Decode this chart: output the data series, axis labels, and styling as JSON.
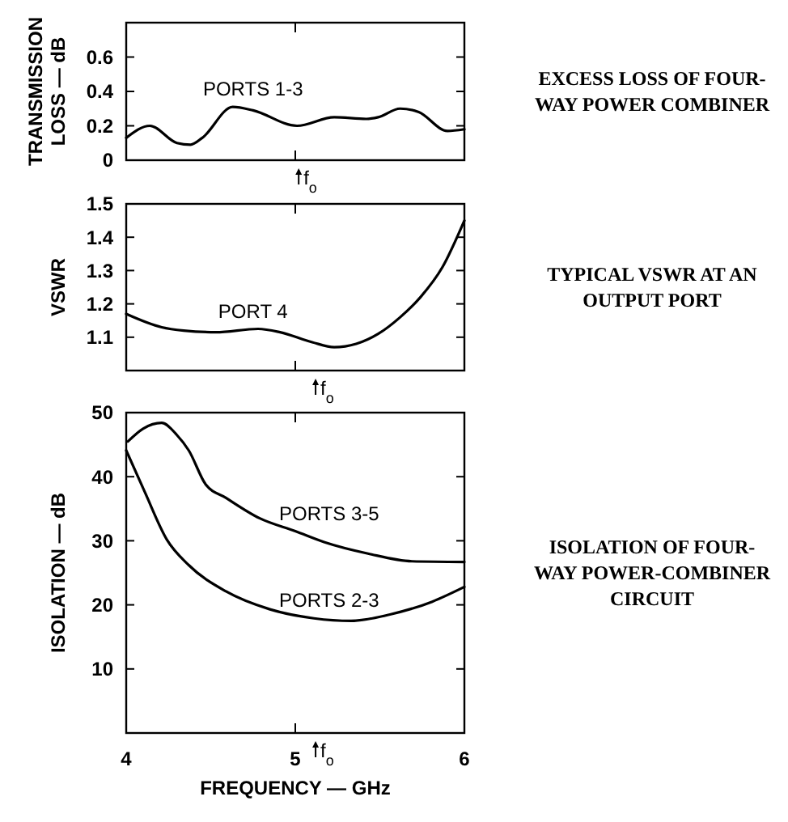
{
  "chart_data": [
    {
      "type": "line",
      "annotations": [
        "EXCESS LOSS OF FOUR-WAY POWER COMBINER"
      ],
      "ylabel": "TRANSMISSION LOSS — dB",
      "xlim": [
        4,
        6
      ],
      "xticks": [
        {
          "value": 4,
          "label": null
        },
        {
          "value": 5,
          "label": null
        },
        {
          "value": 6,
          "label": null
        }
      ],
      "ylim": [
        0,
        0.8
      ],
      "yticks": [
        0,
        0.2,
        0.4,
        0.6
      ],
      "tick_labels": "y",
      "ref_lines": [
        {
          "axis": "x",
          "value": 5.02,
          "label": "f$_{o}$"
        }
      ],
      "series": [
        {
          "name": "PORTS 1-3",
          "color": "#000000",
          "x": [
            4,
            4.14,
            4.3,
            4.38,
            4.45,
            4.63,
            4.75,
            5.01,
            5.23,
            5.42,
            5.49,
            5.62,
            5.73,
            5.9,
            6
          ],
          "values": [
            0.13,
            0.2,
            0.1,
            0.09,
            0.13,
            0.31,
            0.29,
            0.2,
            0.25,
            0.24,
            0.25,
            0.3,
            0.28,
            0.17,
            0.18
          ]
        }
      ]
    },
    {
      "type": "line",
      "annotations": [
        "TYPICAL VSWR AT AN OUTPUT PORT"
      ],
      "ylabel": "VSWR",
      "xlim": [
        4,
        6
      ],
      "xticks": [
        {
          "value": 4,
          "label": null
        },
        {
          "value": 5,
          "label": null
        },
        {
          "value": 6,
          "label": null
        }
      ],
      "ylim": [
        1,
        1.5
      ],
      "yticks": [
        1.1,
        1.2,
        1.3,
        1.4,
        1.5
      ],
      "tick_labels": "y",
      "ref_lines": [
        {
          "axis": "x",
          "value": 5.12,
          "label": "f$_{o}$"
        }
      ],
      "series": [
        {
          "name": "PORT 4",
          "color": "#000000",
          "x": [
            4,
            4.21,
            4.34,
            4.53,
            4.78,
            4.91,
            5.1,
            5.23,
            5.36,
            5.49,
            5.62,
            5.74,
            5.87,
            6
          ],
          "values": [
            1.17,
            1.13,
            1.12,
            1.115,
            1.125,
            1.115,
            1.085,
            1.07,
            1.08,
            1.11,
            1.16,
            1.22,
            1.31,
            1.45
          ]
        }
      ]
    },
    {
      "type": "line",
      "annotations": [
        "ISOLATION OF FOUR-WAY POWER-COMBINER CIRCUIT"
      ],
      "ylabel": "ISOLATION — dB",
      "xlabel": "FREQUENCY — GHz",
      "xlim": [
        4,
        6
      ],
      "xticks": [
        4,
        5,
        6
      ],
      "ylim": [
        0,
        50
      ],
      "yticks": [
        10,
        20,
        30,
        40,
        50
      ],
      "ref_lines": [
        {
          "axis": "x",
          "value": 5.12,
          "label": "f$_{o}$"
        }
      ],
      "series": [
        {
          "name": "PORTS 3-5",
          "color": "#000000",
          "x": [
            4.01,
            4.1,
            4.21,
            4.3,
            4.37,
            4.47,
            4.59,
            4.79,
            5,
            5.17,
            5.43,
            5.69,
            6
          ],
          "values": [
            45.5,
            47.5,
            48.4,
            46.5,
            44.1,
            38.8,
            36.7,
            33.5,
            31.5,
            29.8,
            28,
            26.8,
            26.7
          ]
        },
        {
          "name": "PORTS 2-3",
          "color": "#000000",
          "x": [
            4,
            4.11,
            4.24,
            4.37,
            4.59,
            4.85,
            5.11,
            5.33,
            5.56,
            5.81,
            6
          ],
          "values": [
            44.1,
            37.6,
            30.2,
            26.2,
            22.1,
            19.3,
            17.9,
            17.5,
            18.5,
            20.5,
            22.8
          ]
        }
      ]
    }
  ]
}
